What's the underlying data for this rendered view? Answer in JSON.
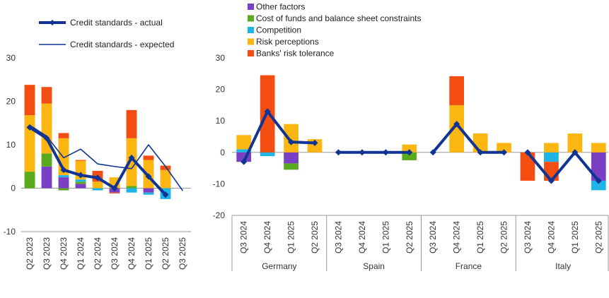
{
  "colors": {
    "other": "#7b3fc4",
    "cost": "#5aaa1e",
    "competition": "#1eb4e6",
    "risk_perceptions": "#fbb612",
    "risk_tolerance": "#f34d12",
    "line": "#0f3494",
    "axis": "#999999"
  },
  "legend_left": [
    {
      "label": "Credit standards - actual",
      "style": "thick"
    },
    {
      "label": "Credit standards - expected",
      "style": "thin"
    }
  ],
  "legend_right": [
    {
      "label": "Other factors",
      "color_key": "other"
    },
    {
      "label": "Cost of funds and balance sheet constraints",
      "color_key": "cost"
    },
    {
      "label": "Competition",
      "color_key": "competition"
    },
    {
      "label": "Risk perceptions",
      "color_key": "risk_perceptions"
    },
    {
      "label": "Banks' risk tolerance",
      "color_key": "risk_tolerance"
    }
  ],
  "chart_data": [
    {
      "type": "bar",
      "stacked": true,
      "categories": [
        "Q2 2023",
        "Q3 2023",
        "Q4 2023",
        "Q1 2024",
        "Q2 2024",
        "Q3 2024",
        "Q4 2024",
        "Q1 2025",
        "Q2 2025",
        "Q3 2025"
      ],
      "ylim": [
        -10,
        30
      ],
      "yticks": [
        -10,
        0,
        10,
        20,
        30
      ],
      "series": [
        {
          "name": "Other factors",
          "color_key": "other",
          "values": [
            0,
            5,
            2.5,
            1,
            0,
            -1,
            0,
            -1,
            0,
            null
          ]
        },
        {
          "name": "Cost of funds and balance sheet constraints",
          "color_key": "cost",
          "values": [
            3.8,
            3,
            -0.5,
            0.5,
            0,
            0,
            0.5,
            0,
            0,
            null
          ]
        },
        {
          "name": "Competition",
          "color_key": "competition",
          "values": [
            0,
            0,
            0.5,
            0.5,
            -0.5,
            0,
            -1,
            -0.5,
            -2.5,
            null
          ]
        },
        {
          "name": "Risk perceptions",
          "color_key": "risk_perceptions",
          "values": [
            13,
            11.5,
            8.5,
            4.3,
            1.5,
            2.5,
            11,
            6.5,
            4.2,
            null
          ]
        },
        {
          "name": "Banks' risk tolerance",
          "color_key": "risk_tolerance",
          "values": [
            7,
            3.8,
            1.2,
            0.2,
            2.5,
            -0.2,
            6.5,
            1,
            1,
            null
          ]
        }
      ],
      "lines": [
        {
          "name": "Credit standards - actual",
          "style": "thick",
          "values": [
            14,
            11.5,
            4.2,
            3,
            2.4,
            0,
            7,
            2.7,
            -1.5,
            null
          ]
        },
        {
          "name": "Credit standards - expected",
          "style": "thin",
          "values": [
            14.5,
            12,
            7,
            9,
            5.6,
            5,
            4.5,
            10,
            5,
            -0.5
          ]
        }
      ]
    },
    {
      "type": "bar",
      "stacked": true,
      "groups": [
        "Germany",
        "Spain",
        "France",
        "Italy"
      ],
      "categories": [
        "Q3 2024",
        "Q4 2024",
        "Q1 2025",
        "Q2 2025"
      ],
      "ylim": [
        -20,
        30
      ],
      "yticks": [
        -20,
        -10,
        0,
        10,
        20,
        30
      ],
      "group_data": [
        {
          "group": "Germany",
          "series": [
            {
              "name": "Other factors",
              "color_key": "other",
              "values": [
                -3,
                0,
                -3.5,
                0
              ]
            },
            {
              "name": "Cost of funds and balance sheet constraints",
              "color_key": "cost",
              "values": [
                0,
                0,
                -2,
                0
              ]
            },
            {
              "name": "Competition",
              "color_key": "competition",
              "values": [
                1,
                -1.2,
                0,
                0
              ]
            },
            {
              "name": "Risk perceptions",
              "color_key": "risk_perceptions",
              "values": [
                4.5,
                0,
                9,
                4.2
              ]
            },
            {
              "name": "Banks' risk tolerance",
              "color_key": "risk_tolerance",
              "values": [
                0,
                24.5,
                0,
                0
              ]
            }
          ],
          "line": [
            -3,
            13,
            3.3,
            3
          ]
        },
        {
          "group": "Spain",
          "series": [
            {
              "name": "Other factors",
              "color_key": "other",
              "values": [
                0,
                0,
                0,
                0
              ]
            },
            {
              "name": "Cost of funds and balance sheet constraints",
              "color_key": "cost",
              "values": [
                0,
                0,
                0,
                -2.5
              ]
            },
            {
              "name": "Competition",
              "color_key": "competition",
              "values": [
                0,
                0,
                0,
                0
              ]
            },
            {
              "name": "Risk perceptions",
              "color_key": "risk_perceptions",
              "values": [
                0,
                0,
                0,
                2.5
              ]
            },
            {
              "name": "Banks' risk tolerance",
              "color_key": "risk_tolerance",
              "values": [
                0,
                0,
                0,
                0
              ]
            }
          ],
          "line": [
            0,
            0,
            0,
            0
          ]
        },
        {
          "group": "France",
          "series": [
            {
              "name": "Other factors",
              "color_key": "other",
              "values": [
                0,
                0,
                0,
                0
              ]
            },
            {
              "name": "Cost of funds and balance sheet constraints",
              "color_key": "cost",
              "values": [
                0,
                0,
                0,
                0
              ]
            },
            {
              "name": "Competition",
              "color_key": "competition",
              "values": [
                0,
                0,
                0,
                0
              ]
            },
            {
              "name": "Risk perceptions",
              "color_key": "risk_perceptions",
              "values": [
                0,
                15,
                6,
                3
              ]
            },
            {
              "name": "Banks' risk tolerance",
              "color_key": "risk_tolerance",
              "values": [
                0,
                9.2,
                0,
                0
              ]
            }
          ],
          "line": [
            0,
            9,
            0,
            0
          ]
        },
        {
          "group": "Italy",
          "series": [
            {
              "name": "Other factors",
              "color_key": "other",
              "values": [
                0,
                0,
                0,
                -9
              ]
            },
            {
              "name": "Cost of funds and balance sheet constraints",
              "color_key": "cost",
              "values": [
                0,
                0,
                0,
                0
              ]
            },
            {
              "name": "Competition",
              "color_key": "competition",
              "values": [
                0,
                -3,
                0,
                -3
              ]
            },
            {
              "name": "Risk perceptions",
              "color_key": "risk_perceptions",
              "values": [
                0,
                3,
                6,
                3
              ]
            },
            {
              "name": "Banks' risk tolerance",
              "color_key": "risk_tolerance",
              "values": [
                -9,
                -6,
                0,
                0
              ]
            }
          ],
          "line": [
            0,
            -9,
            0,
            -9
          ]
        }
      ]
    }
  ]
}
